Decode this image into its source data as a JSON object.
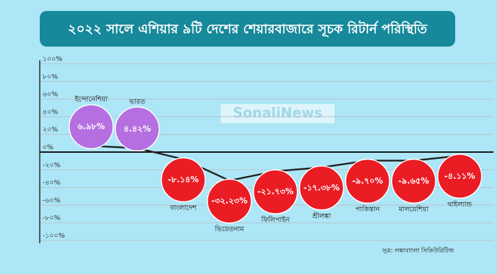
{
  "chart_data": {
    "type": "line",
    "title": "২০২২ সালে এশিয়ার ৯টি দেশের শেয়ারবাজারে সূচক রিটার্ন পরিস্থিতি",
    "categories": [
      "ইন্দোনেশিয়া",
      "ভারত",
      "বাংলাদেশ",
      "ভিয়েতনাম",
      "ফিলিপাইন",
      "শ্রীলঙ্কা",
      "পাকিস্তান",
      "মালয়েশিয়া",
      "থাইল্যান্ড"
    ],
    "values": [
      6.98,
      4.42,
      -8.14,
      -32.23,
      -21.73,
      -17.38,
      -9.7,
      -9.65,
      -4.11
    ],
    "value_labels": [
      "৬.৯৮%",
      "৪.৪২%",
      "-৮.১৪%",
      "-৩২.২৩%",
      "-২১.৭৩%",
      "-১৭.৩৮%",
      "-৯.৭০%",
      "-৯.৬৫%",
      "-৪.১১%"
    ],
    "positive_color": "#b56fe0",
    "negative_color": "#ea1c24",
    "line_color": "#222222",
    "ylim": [
      -100,
      100
    ],
    "yticks": [
      {
        "value": 100,
        "label": "১০০%"
      },
      {
        "value": 80,
        "label": "৮০%"
      },
      {
        "value": 60,
        "label": "৬০%"
      },
      {
        "value": 40,
        "label": "৪০%"
      },
      {
        "value": 20,
        "label": "২০%"
      },
      {
        "value": 0,
        "label": "০%"
      },
      {
        "value": -20,
        "label": "-২০%"
      },
      {
        "value": -40,
        "label": "-৪০%"
      },
      {
        "value": -60,
        "label": "-৬০%"
      },
      {
        "value": -80,
        "label": "-৮০%"
      },
      {
        "value": -100,
        "label": "-১০০%"
      }
    ],
    "grid": true,
    "watermark": "SonaliNews",
    "source": "সূত্র: লঙ্কাবাংলা সিকিউরিটিজ"
  }
}
